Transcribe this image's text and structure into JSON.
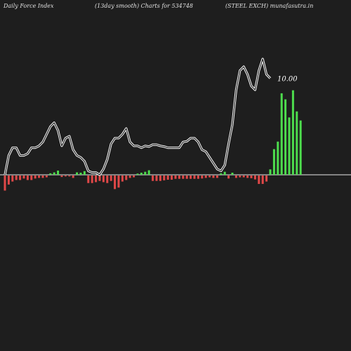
{
  "header": {
    "left": "Daily Force  Index",
    "center": "(13day smooth) Charts for 534748",
    "right": "(STEEL  EXCH) munafasutra.in"
  },
  "colors": {
    "background": "#1e1e1e",
    "line": "#ffffff",
    "zero_line": "#e8e8e8",
    "positive_bar": "#4ddc4d",
    "negative_bar": "#e04848"
  },
  "chart_data": {
    "type": "bar+line",
    "title": "Daily Force  Index",
    "last_value_label": "10.00",
    "bars": [
      -5,
      -3,
      -2,
      -1.5,
      -1.5,
      -1,
      -1.5,
      -1.5,
      -1,
      -0.8,
      -0.8,
      -0.6,
      0.5,
      0.8,
      1.4,
      -0.5,
      -0.3,
      -0.3,
      -0.8,
      0.8,
      0.7,
      1.2,
      -2.5,
      -2.5,
      -2.2,
      -1.8,
      -2.2,
      -2.5,
      -1.8,
      -4.5,
      -4.0,
      -2.0,
      -1.5,
      -0.8,
      -0.6,
      0.4,
      0.7,
      1.0,
      1.5,
      -1.8,
      -1.8,
      -1.8,
      -1.6,
      -1.4,
      -1.4,
      -1.1,
      -1.1,
      -1.1,
      -1.1,
      -1.1,
      -1.1,
      -1.1,
      -1.0,
      -0.8,
      -0.6,
      -0.8,
      -0.8,
      0.5,
      1.0,
      -1.0,
      0.7,
      -0.8,
      -0.6,
      -0.6,
      -0.8,
      -0.9,
      -1.3,
      -2.8,
      -2.8,
      -2.0,
      1.8,
      8.5,
      11.0,
      27.0,
      25.0,
      19.0,
      28.0,
      21.0,
      18.0
    ],
    "line": [
      0,
      5,
      7,
      7,
      5,
      5,
      5.5,
      7,
      7,
      7.5,
      8.5,
      10.5,
      12.5,
      13.5,
      11.5,
      7.5,
      9.5,
      10,
      6.5,
      5,
      4.5,
      3.5,
      1,
      0.6,
      0.6,
      0,
      1.5,
      4,
      8,
      9.5,
      9.5,
      10.5,
      12,
      8.5,
      7.5,
      7.5,
      7,
      7.5,
      7.3,
      7.8,
      7.8,
      7.5,
      7.3,
      7,
      7,
      7,
      7,
      8.5,
      8.7,
      9.5,
      9.5,
      8.5,
      6.5,
      6,
      4.5,
      3,
      1.5,
      1,
      2.5,
      8,
      13,
      22,
      27,
      28,
      26,
      23,
      22,
      27,
      30,
      26,
      25
    ],
    "line_start_index": 0,
    "grid": false,
    "legend": "none"
  }
}
